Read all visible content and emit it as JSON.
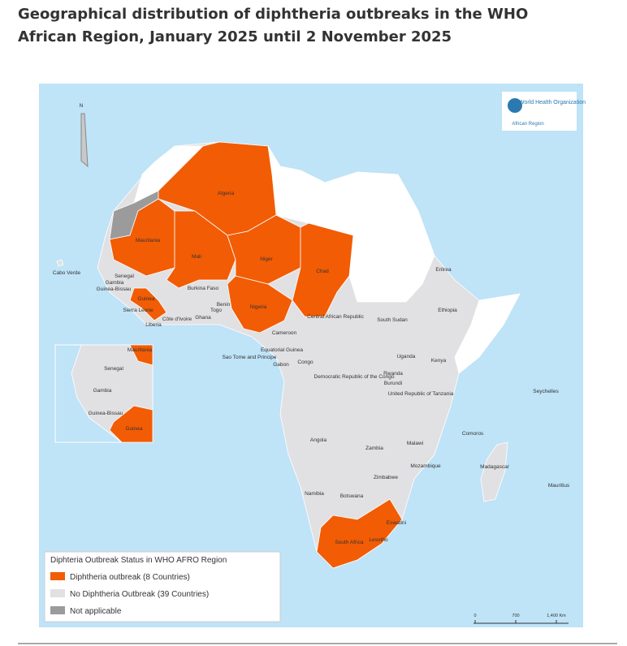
{
  "title": "Geographical distribution of diphtheria outbreaks in the WHO African Region, January 2025 until 2 November 2025",
  "logo": {
    "name": "World Health Organization",
    "region": "African Region"
  },
  "north": "N",
  "map_labels": [
    "Algeria",
    "Mauritania",
    "Mali",
    "Niger",
    "Chad",
    "Nigeria",
    "Senegal",
    "Gambia",
    "Guinea-Bissau",
    "Guinea",
    "Sierra Leone",
    "Liberia",
    "Côte d'Ivoire",
    "Burkina Faso",
    "Ghana",
    "Togo",
    "Benin",
    "Cabo Verde",
    "Cameroon",
    "Equatorial Guinea",
    "Sao Tome and Principe",
    "Gabon",
    "Congo",
    "Central African Republic",
    "South Sudan",
    "Ethiopia",
    "Eritrea",
    "Uganda",
    "Kenya",
    "Democratic Republic of the Congo",
    "Rwanda",
    "Burundi",
    "United Republic of Tanzania",
    "Seychelles",
    "Angola",
    "Zambia",
    "Malawi",
    "Comoros",
    "Mozambique",
    "Madagascar",
    "Mauritius",
    "Zimbabwe",
    "Namibia",
    "Botswana",
    "South Africa",
    "Eswatini",
    "Lesotho"
  ],
  "inset_labels": [
    "Mauritania",
    "Senegal",
    "Gambia",
    "Guinea-Bissau",
    "Guinea"
  ],
  "legend": {
    "title": "Diphteria Outbreak Status in WHO AFRO Region",
    "items": [
      {
        "label": "Diphtheria outbreak (8 Countries)",
        "color": "#f25c05"
      },
      {
        "label": "No Diphtheria Outbreak (39 Countries)",
        "color": "#e1e1e3"
      },
      {
        "label": "Not applicable",
        "color": "#9b9b9b"
      }
    ]
  },
  "scale": [
    "0",
    "700",
    "1,400 Km"
  ]
}
